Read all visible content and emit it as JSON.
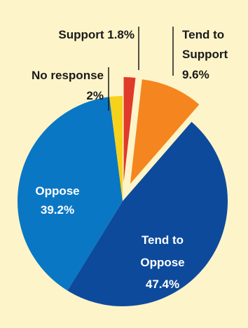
{
  "chart_data": {
    "type": "pie",
    "title": "",
    "slices": [
      {
        "label": "Support",
        "value": 1.8,
        "display": "1.8%",
        "color": "#e03a2a",
        "exploded": true
      },
      {
        "label": "Tend to Support",
        "value": 9.6,
        "display": "9.6%",
        "color": "#f5861f",
        "exploded": true
      },
      {
        "label": "Tend to Oppose",
        "value": 47.4,
        "display": "47.4%",
        "color": "#0d4a9c",
        "exploded": false
      },
      {
        "label": "Oppose",
        "value": 39.2,
        "display": "39.2%",
        "color": "#0a77c4",
        "exploded": false
      },
      {
        "label": "No response",
        "value": 2,
        "display": "2%",
        "color": "#f7d21b",
        "exploded": false
      }
    ],
    "background_color": "#fdf4c9",
    "label_text_color": "#1a1a1a",
    "inner_label_color": "#ffffff"
  },
  "labels": {
    "support": "Support 1.8%",
    "tend_support_line1": "Tend to",
    "tend_support_line2": "Support",
    "tend_support_value": "9.6%",
    "no_response": "No response",
    "no_response_value": "2%",
    "oppose": "Oppose",
    "oppose_value": "39.2%",
    "tend_oppose_line1": "Tend to",
    "tend_oppose_line2": "Oppose",
    "tend_oppose_value": "47.4%"
  }
}
